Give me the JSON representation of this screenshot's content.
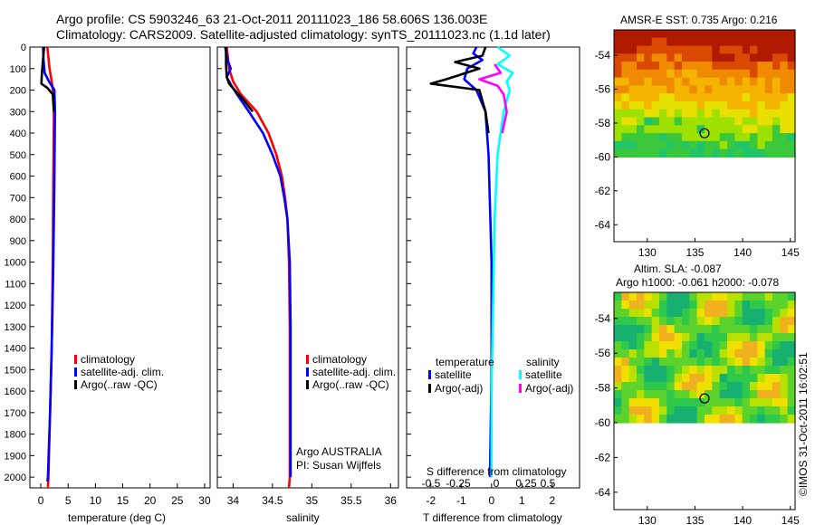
{
  "header": {
    "line1": "Argo profile: CS 5903246_63 21-Oct-2011 20111023_186 58.606S 136.003E",
    "line2": "Climatology: CARS2009. Satellite-adjusted climatology: synTS_20111023.nc (1.1d later)"
  },
  "depth_axis": {
    "ticks": [
      "0",
      "100",
      "200",
      "300",
      "400",
      "500",
      "600",
      "700",
      "800",
      "900",
      "1000",
      "1100",
      "1200",
      "1300",
      "1400",
      "1500",
      "1600",
      "1700",
      "1800",
      "1900",
      "2000"
    ]
  },
  "credit": "©IMOS 31-Oct-2011 16:02:51",
  "colors": {
    "climatology": "#ff0000",
    "satellite": "#0000ff",
    "argo": "#000000",
    "sal_satellite": "#00ffff",
    "sal_argo": "#ff00ff"
  },
  "chart_data": [
    {
      "id": "temperature",
      "type": "line",
      "xlabel": "temperature (deg C)",
      "ylabel": "",
      "xlim": [
        -2,
        31
      ],
      "ylim": [
        2050,
        0
      ],
      "xticks": [
        "0",
        "5",
        "10",
        "15",
        "20",
        "25",
        "30"
      ],
      "xtick_values": [
        0,
        5,
        10,
        15,
        20,
        25,
        30
      ],
      "legend": {
        "position": "center-left",
        "entries": [
          "climatology",
          "satellite-adj. clim.",
          "Argo(..raw -QC)"
        ]
      },
      "series": [
        {
          "name": "climatology",
          "color": "#ff0000",
          "points": [
            [
              1.2,
              0
            ],
            [
              1.4,
              50
            ],
            [
              1.6,
              100
            ],
            [
              2.0,
              160
            ],
            [
              2.3,
              220
            ],
            [
              2.4,
              300
            ],
            [
              2.3,
              600
            ],
            [
              2.2,
              1000
            ],
            [
              2.0,
              1400
            ],
            [
              1.7,
              1700
            ],
            [
              1.4,
              2000
            ],
            [
              1.3,
              2050
            ]
          ]
        },
        {
          "name": "satellite-adj. clim.",
          "color": "#0000ff",
          "points": [
            [
              0.4,
              0
            ],
            [
              0.5,
              60
            ],
            [
              0.7,
              120
            ],
            [
              1.5,
              160
            ],
            [
              2.5,
              200
            ],
            [
              2.6,
              300
            ],
            [
              2.5,
              600
            ],
            [
              2.3,
              1000
            ],
            [
              2.0,
              1400
            ],
            [
              1.7,
              1700
            ],
            [
              1.3,
              2000
            ],
            [
              1.2,
              2020
            ]
          ]
        },
        {
          "name": "Argo(..raw -QC)",
          "color": "#000000",
          "points": [
            [
              0.6,
              0
            ],
            [
              0.4,
              60
            ],
            [
              0.2,
              120
            ],
            [
              0.1,
              170
            ],
            [
              1.2,
              190
            ],
            [
              2.2,
              220
            ],
            [
              2.4,
              300
            ]
          ]
        }
      ]
    },
    {
      "id": "salinity",
      "type": "line",
      "xlabel": "salinity",
      "ylabel": "",
      "xlim": [
        33.8,
        36.1
      ],
      "ylim": [
        2050,
        0
      ],
      "xticks": [
        "34",
        "34.5",
        "35",
        "35.5",
        "36"
      ],
      "xtick_values": [
        34,
        34.5,
        35,
        35.5,
        36
      ],
      "legend": {
        "position": "center-left",
        "entries": [
          "climatology",
          "satellite-adj. clim.",
          "Argo(..raw -QC)"
        ]
      },
      "annotation": [
        "Argo AUSTRALIA",
        "PI: Susan Wijffels"
      ],
      "series": [
        {
          "name": "climatology",
          "color": "#ff0000",
          "points": [
            [
              33.92,
              0
            ],
            [
              33.95,
              100
            ],
            [
              34.0,
              160
            ],
            [
              34.1,
              220
            ],
            [
              34.3,
              300
            ],
            [
              34.45,
              400
            ],
            [
              34.55,
              500
            ],
            [
              34.62,
              600
            ],
            [
              34.66,
              700
            ],
            [
              34.69,
              800
            ],
            [
              34.71,
              1000
            ],
            [
              34.72,
              1300
            ],
            [
              34.72,
              1600
            ],
            [
              34.72,
              2000
            ],
            [
              34.71,
              2050
            ]
          ]
        },
        {
          "name": "satellite-adj. clim.",
          "color": "#0000ff",
          "points": [
            [
              33.9,
              0
            ],
            [
              33.93,
              60
            ],
            [
              33.97,
              100
            ],
            [
              33.92,
              140
            ],
            [
              33.98,
              180
            ],
            [
              34.05,
              220
            ],
            [
              34.2,
              300
            ],
            [
              34.38,
              400
            ],
            [
              34.5,
              500
            ],
            [
              34.6,
              600
            ],
            [
              34.65,
              700
            ],
            [
              34.69,
              800
            ],
            [
              34.72,
              1000
            ],
            [
              34.73,
              1300
            ],
            [
              34.73,
              1600
            ],
            [
              34.73,
              2000
            ]
          ]
        },
        {
          "name": "Argo(..raw -QC)",
          "color": "#000000",
          "points": [
            [
              33.91,
              0
            ],
            [
              33.91,
              80
            ],
            [
              33.92,
              140
            ],
            [
              33.95,
              170
            ],
            [
              34.02,
              200
            ],
            [
              34.12,
              240
            ],
            [
              34.25,
              300
            ]
          ]
        }
      ]
    },
    {
      "id": "difference",
      "type": "line",
      "xlabel": "T difference from climatology",
      "ylabel": "",
      "xlim": [
        -2.8,
        2.9
      ],
      "ylim": [
        2050,
        0
      ],
      "xticks": [
        "-2",
        "-1",
        "0",
        "1",
        "2"
      ],
      "xtick_values": [
        -2,
        -1,
        0,
        1,
        2
      ],
      "top_label": "S difference from climatology",
      "top_ticks": [
        "-0.5",
        "-0.25",
        "0",
        "0.25",
        "0.5"
      ],
      "legend_groups": [
        {
          "title": "temperature",
          "entries": [
            "satellite",
            "Argo(-adj)"
          ]
        },
        {
          "title": "salinity",
          "entries": [
            "satellite",
            "Argo(-adj)"
          ]
        }
      ],
      "series": [
        {
          "name": "satellite",
          "group": "temperature",
          "color": "#0000ff",
          "points": [
            [
              -0.5,
              0
            ],
            [
              -0.6,
              30
            ],
            [
              -0.3,
              60
            ],
            [
              -0.8,
              100
            ],
            [
              -0.9,
              150
            ],
            [
              -0.5,
              200
            ],
            [
              -0.2,
              300
            ],
            [
              -0.1,
              500
            ],
            [
              0.0,
              1000
            ],
            [
              0.0,
              1500
            ],
            [
              -0.05,
              2000
            ]
          ]
        },
        {
          "name": "Argo(-adj)",
          "group": "temperature",
          "color": "#000000",
          "points": [
            [
              -0.2,
              0
            ],
            [
              -0.3,
              40
            ],
            [
              -1.2,
              70
            ],
            [
              -0.4,
              100
            ],
            [
              -1.5,
              150
            ],
            [
              -2.0,
              170
            ],
            [
              -0.4,
              200
            ],
            [
              -0.2,
              300
            ],
            [
              -0.1,
              400
            ]
          ]
        },
        {
          "name": "satellite",
          "group": "salinity",
          "color": "#00ffff",
          "points": [
            [
              0.2,
              0
            ],
            [
              0.6,
              40
            ],
            [
              0.2,
              80
            ],
            [
              0.7,
              120
            ],
            [
              0.5,
              160
            ],
            [
              0.6,
              200
            ],
            [
              0.4,
              300
            ],
            [
              0.2,
              500
            ],
            [
              0.1,
              800
            ],
            [
              0.05,
              1200
            ],
            [
              0.0,
              1600
            ],
            [
              0.0,
              2000
            ]
          ]
        },
        {
          "name": "Argo(-adj)",
          "group": "salinity",
          "color": "#ff00ff",
          "points": [
            [
              0.1,
              80
            ],
            [
              0.3,
              120
            ],
            [
              -0.4,
              150
            ],
            [
              0.2,
              180
            ],
            [
              0.4,
              220
            ],
            [
              0.5,
              300
            ],
            [
              0.35,
              400
            ]
          ]
        }
      ]
    },
    {
      "id": "sst_map",
      "type": "heatmap",
      "title": "AMSR-E SST: 0.735 Argo: 0.216",
      "xlim": [
        126.5,
        145.5
      ],
      "ylim": [
        -65,
        -52.5
      ],
      "xticks": [
        "130",
        "135",
        "140",
        "145"
      ],
      "xtick_values": [
        130,
        135,
        140,
        145
      ],
      "yticks": [
        "-54",
        "-56",
        "-58",
        "-60",
        "-62",
        "-64"
      ],
      "ytick_values": [
        -54,
        -56,
        -58,
        -60,
        -62,
        -64
      ],
      "data_extent_south": -60,
      "marker": {
        "lon": 136.0,
        "lat": -58.6
      }
    },
    {
      "id": "sla_map",
      "type": "heatmap",
      "title": "Altim. SLA: -0.087",
      "subtitle": "Argo h1000: -0.061 h2000: -0.078",
      "xlim": [
        126.5,
        145.5
      ],
      "ylim": [
        -65,
        -52.5
      ],
      "xticks": [
        "130",
        "135",
        "140",
        "145"
      ],
      "xtick_values": [
        130,
        135,
        140,
        145
      ],
      "yticks": [
        "-54",
        "-56",
        "-58",
        "-60",
        "-62",
        "-64"
      ],
      "ytick_values": [
        -54,
        -56,
        -58,
        -60,
        -62,
        -64
      ],
      "data_extent_south": -60,
      "marker": {
        "lon": 136.0,
        "lat": -58.6
      }
    }
  ]
}
